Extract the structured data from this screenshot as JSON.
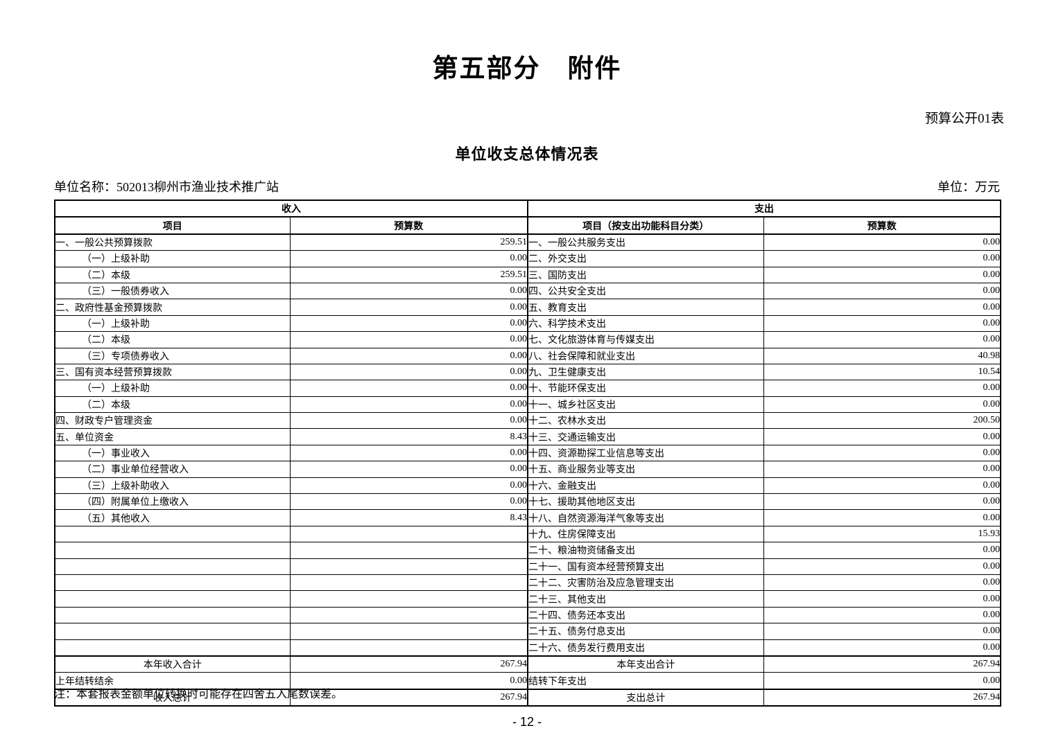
{
  "header": {
    "title": "第五部分　附件",
    "form_label": "预算公开01表",
    "table_title": "单位收支总体情况表",
    "unit_name": "单位名称：502013柳州市渔业技术推广站",
    "unit_of_measure": "单位：万元"
  },
  "table": {
    "income_header": "收入",
    "expense_header": "支出",
    "columns": {
      "income_item": "项目",
      "income_budget": "预算数",
      "expense_item": "项目（按支出功能科目分类）",
      "expense_budget": "预算数"
    },
    "rows": [
      {
        "income_item": "一、一般公共预算拨款",
        "income_indent": 0,
        "income_value": "259.51",
        "expense_item": "一、一般公共服务支出",
        "expense_value": "0.00"
      },
      {
        "income_item": "（一）上级补助",
        "income_indent": 1,
        "income_value": "0.00",
        "expense_item": "二、外交支出",
        "expense_value": "0.00"
      },
      {
        "income_item": "（二）本级",
        "income_indent": 1,
        "income_value": "259.51",
        "expense_item": "三、国防支出",
        "expense_value": "0.00"
      },
      {
        "income_item": "（三）一般债券收入",
        "income_indent": 1,
        "income_value": "0.00",
        "expense_item": "四、公共安全支出",
        "expense_value": "0.00"
      },
      {
        "income_item": "二、政府性基金预算拨款",
        "income_indent": 0,
        "income_value": "0.00",
        "expense_item": "五、教育支出",
        "expense_value": "0.00"
      },
      {
        "income_item": "（一）上级补助",
        "income_indent": 1,
        "income_value": "0.00",
        "expense_item": "六、科学技术支出",
        "expense_value": "0.00"
      },
      {
        "income_item": "（二）本级",
        "income_indent": 1,
        "income_value": "0.00",
        "expense_item": "七、文化旅游体育与传媒支出",
        "expense_value": "0.00"
      },
      {
        "income_item": "（三）专项债券收入",
        "income_indent": 1,
        "income_value": "0.00",
        "expense_item": "八、社会保障和就业支出",
        "expense_value": "40.98"
      },
      {
        "income_item": "三、国有资本经营预算拨款",
        "income_indent": 0,
        "income_value": "0.00",
        "expense_item": "九、卫生健康支出",
        "expense_value": "10.54"
      },
      {
        "income_item": "（一）上级补助",
        "income_indent": 1,
        "income_value": "0.00",
        "expense_item": "十、节能环保支出",
        "expense_value": "0.00"
      },
      {
        "income_item": "（二）本级",
        "income_indent": 1,
        "income_value": "0.00",
        "expense_item": "十一、城乡社区支出",
        "expense_value": "0.00"
      },
      {
        "income_item": "四、财政专户管理资金",
        "income_indent": 0,
        "income_value": "0.00",
        "expense_item": "十二、农林水支出",
        "expense_value": "200.50"
      },
      {
        "income_item": "五、单位资金",
        "income_indent": 0,
        "income_value": "8.43",
        "expense_item": "十三、交通运输支出",
        "expense_value": "0.00"
      },
      {
        "income_item": "（一）事业收入",
        "income_indent": 1,
        "income_value": "0.00",
        "expense_item": "十四、资源勘探工业信息等支出",
        "expense_value": "0.00"
      },
      {
        "income_item": "（二）事业单位经营收入",
        "income_indent": 1,
        "income_value": "0.00",
        "expense_item": "十五、商业服务业等支出",
        "expense_value": "0.00"
      },
      {
        "income_item": "（三）上级补助收入",
        "income_indent": 1,
        "income_value": "0.00",
        "expense_item": "十六、金融支出",
        "expense_value": "0.00"
      },
      {
        "income_item": "（四）附属单位上缴收入",
        "income_indent": 1,
        "income_value": "0.00",
        "expense_item": "十七、援助其他地区支出",
        "expense_value": "0.00"
      },
      {
        "income_item": "（五）其他收入",
        "income_indent": 1,
        "income_value": "8.43",
        "expense_item": "十八、自然资源海洋气象等支出",
        "expense_value": "0.00"
      },
      {
        "income_item": "",
        "income_indent": 0,
        "income_value": "",
        "expense_item": "十九、住房保障支出",
        "expense_value": "15.93"
      },
      {
        "income_item": "",
        "income_indent": 0,
        "income_value": "",
        "expense_item": "二十、粮油物资储备支出",
        "expense_value": "0.00"
      },
      {
        "income_item": "",
        "income_indent": 0,
        "income_value": "",
        "expense_item": "二十一、国有资本经营预算支出",
        "expense_value": "0.00"
      },
      {
        "income_item": "",
        "income_indent": 0,
        "income_value": "",
        "expense_item": "二十二、灾害防治及应急管理支出",
        "expense_value": "0.00"
      },
      {
        "income_item": "",
        "income_indent": 0,
        "income_value": "",
        "expense_item": "二十三、其他支出",
        "expense_value": "0.00"
      },
      {
        "income_item": "",
        "income_indent": 0,
        "income_value": "",
        "expense_item": "二十四、债务还本支出",
        "expense_value": "0.00"
      },
      {
        "income_item": "",
        "income_indent": 0,
        "income_value": "",
        "expense_item": "二十五、债务付息支出",
        "expense_value": "0.00"
      },
      {
        "income_item": "",
        "income_indent": 0,
        "income_value": "",
        "expense_item": "二十六、债务发行费用支出",
        "expense_value": "0.00"
      }
    ],
    "totals": {
      "income_year_label": "本年收入合计",
      "income_year_value": "267.94",
      "carryover_in_label": "上年结转结余",
      "carryover_in_value": "0.00",
      "income_total_label": "收入总计",
      "income_total_value": "267.94",
      "expense_year_label": "本年支出合计",
      "expense_year_value": "267.94",
      "carryover_out_label": "结转下年支出",
      "carryover_out_value": "0.00",
      "expense_total_label": "支出总计",
      "expense_total_value": "267.94"
    }
  },
  "footer": {
    "note": "注：本套报表金额单位转换时可能存在四舍五入尾数误差。",
    "page_number": "- 12 -"
  }
}
